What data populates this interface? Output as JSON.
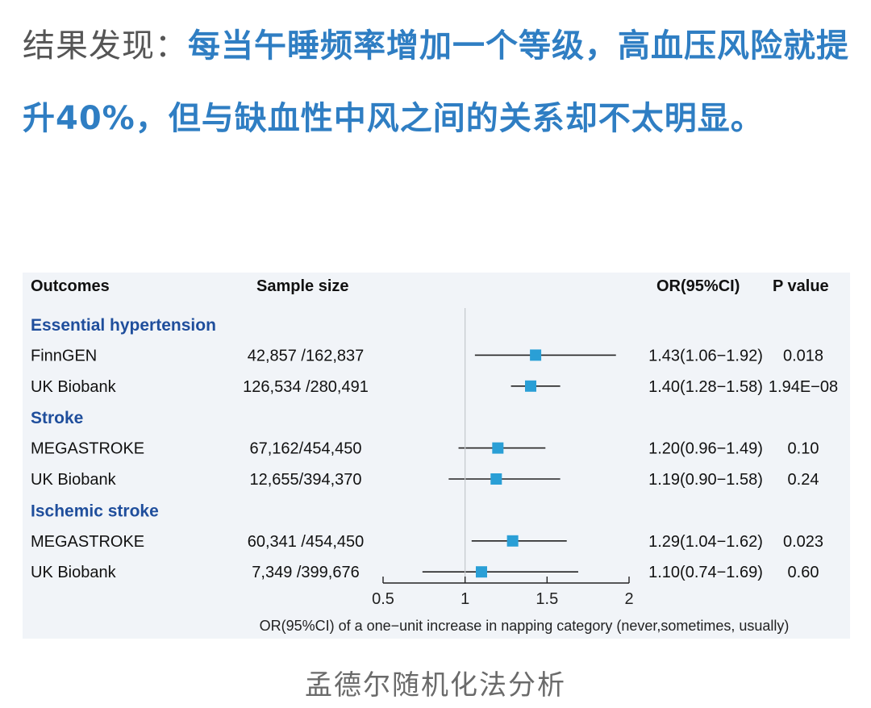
{
  "headline": {
    "lead": "结果发现：",
    "body": "每当午睡频率增加一个等级，高血压风险就提升40%，但与缺血性中风之间的关系却不太明显。"
  },
  "caption": "孟德尔随机化法分析",
  "colors": {
    "marker": "#2a9fd6",
    "group_heading": "#1f4e9c",
    "headline": "#2f7ec3"
  },
  "chart_data": {
    "type": "forest",
    "headers": {
      "outcomes": "Outcomes",
      "sample": "Sample size",
      "or": "OR(95%CI)",
      "p": "P value"
    },
    "xlabel": "OR(95%CI) of a one−unit increase in napping category (never,sometimes, usually)",
    "xlim": [
      0.5,
      2
    ],
    "xticks": [
      0.5,
      1,
      1.5,
      2
    ],
    "tick_labels": [
      "0.5",
      "1",
      "1.5",
      "2"
    ],
    "reference_line": 1,
    "rows": [
      {
        "kind": "group",
        "label": "Essential hypertension"
      },
      {
        "kind": "study",
        "label": "FinnGEN",
        "sample": "42,857 /162,837",
        "or": 1.43,
        "lo": 1.06,
        "hi": 1.92,
        "or_text": "1.43(1.06−1.92)",
        "p": "0.018"
      },
      {
        "kind": "study",
        "label": "UK Biobank",
        "sample": "126,534 /280,491",
        "or": 1.4,
        "lo": 1.28,
        "hi": 1.58,
        "or_text": "1.40(1.28−1.58)",
        "p": "1.94E−08"
      },
      {
        "kind": "group",
        "label": "Stroke"
      },
      {
        "kind": "study",
        "label": "MEGASTROKE",
        "sample": "67,162/454,450",
        "or": 1.2,
        "lo": 0.96,
        "hi": 1.49,
        "or_text": "1.20(0.96−1.49)",
        "p": "0.10"
      },
      {
        "kind": "study",
        "label": "UK Biobank",
        "sample": "12,655/394,370",
        "or": 1.19,
        "lo": 0.9,
        "hi": 1.58,
        "or_text": "1.19(0.90−1.58)",
        "p": "0.24"
      },
      {
        "kind": "group",
        "label": "Ischemic stroke"
      },
      {
        "kind": "study",
        "label": "MEGASTROKE",
        "sample": "60,341 /454,450",
        "or": 1.29,
        "lo": 1.04,
        "hi": 1.62,
        "or_text": "1.29(1.04−1.62)",
        "p": "0.023"
      },
      {
        "kind": "study",
        "label": "UK Biobank",
        "sample": "7,349 /399,676",
        "or": 1.1,
        "lo": 0.74,
        "hi": 1.69,
        "or_text": "1.10(0.74−1.69)",
        "p": "0.60"
      }
    ]
  }
}
